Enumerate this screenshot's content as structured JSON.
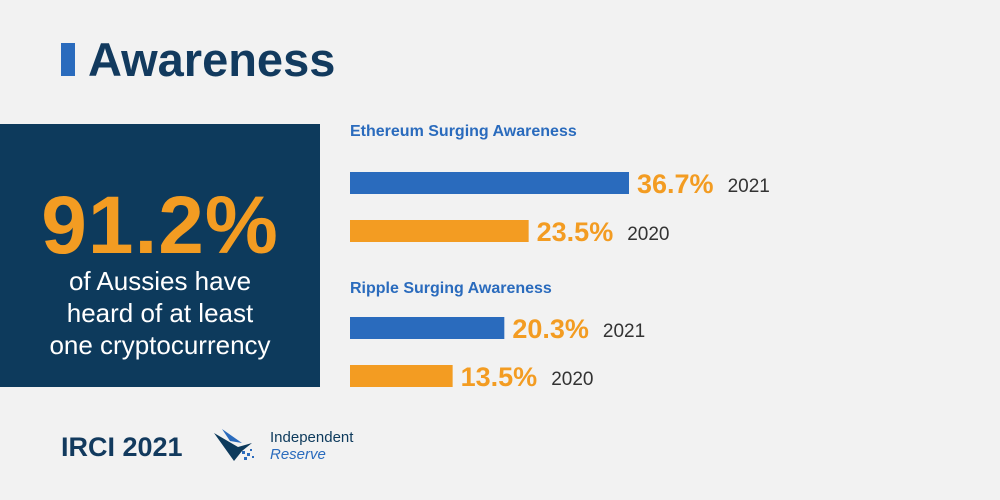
{
  "header": {
    "title": "Awareness",
    "accent_color": "#2a6bbd"
  },
  "stat": {
    "value": "91.2%",
    "caption_lines": [
      "of Aussies have",
      "heard of at least",
      "one cryptocurrency"
    ]
  },
  "colors": {
    "year_2021": "#2a6bbd",
    "year_2020": "#f39c22",
    "group_title": "#2a6bbd",
    "value_label": "#f39c22",
    "year_label": "#333333"
  },
  "chart_data": {
    "type": "bar",
    "orientation": "horizontal",
    "unit": "%",
    "groups": [
      {
        "title": "Ethereum Surging Awareness",
        "bars": [
          {
            "year": "2021",
            "value": 36.7,
            "label": "36.7%"
          },
          {
            "year": "2020",
            "value": 23.5,
            "label": "23.5%"
          }
        ]
      },
      {
        "title": "Ripple Surging Awareness",
        "bars": [
          {
            "year": "2021",
            "value": 20.3,
            "label": "20.3%"
          },
          {
            "year": "2020",
            "value": 13.5,
            "label": "13.5%"
          }
        ]
      }
    ]
  },
  "footer": {
    "label": "IRCI 2021",
    "logo_name": "bird-logo-icon",
    "logo_text": [
      "Independent",
      "Reserve"
    ]
  }
}
